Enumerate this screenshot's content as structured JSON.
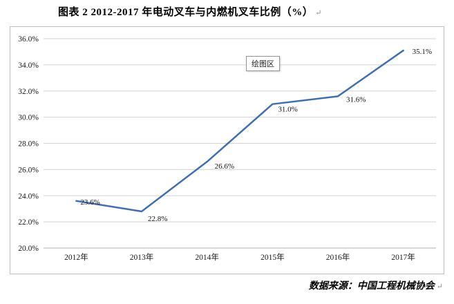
{
  "page": {
    "title": "图表 2  2012-2017 年电动叉车与内燃机叉车比例（%）",
    "title_mark": "↵",
    "source": "数据来源：中国工程机械协会",
    "source_mark": "↵",
    "plot_area_tooltip": "绘图区"
  },
  "chart_data": {
    "type": "line",
    "title": "图表 2  2012-2017 年电动叉车与内燃机叉车比例（%）",
    "categories": [
      "2012年",
      "2013年",
      "2014年",
      "2015年",
      "2016年",
      "2017年"
    ],
    "values": [
      23.6,
      22.8,
      26.6,
      31.0,
      31.6,
      35.1
    ],
    "data_labels": [
      "23.6%",
      "22.8%",
      "26.6%",
      "31.0%",
      "31.6%",
      "35.1%"
    ],
    "xlabel": "",
    "ylabel": "",
    "ylim": [
      20.0,
      36.0
    ],
    "ytick_step": 2.0,
    "ytick_labels": [
      "20.0%",
      "22.0%",
      "24.0%",
      "26.0%",
      "28.0%",
      "30.0%",
      "32.0%",
      "34.0%",
      "36.0%"
    ],
    "grid": true,
    "legend": "none",
    "line_color": "#3E6FB5",
    "gridline_color": "#d3d3d3",
    "axis_line_color": "#b0b0b0",
    "plot_area_label": "绘图区",
    "source": "数据来源：中国工程机械协会"
  }
}
